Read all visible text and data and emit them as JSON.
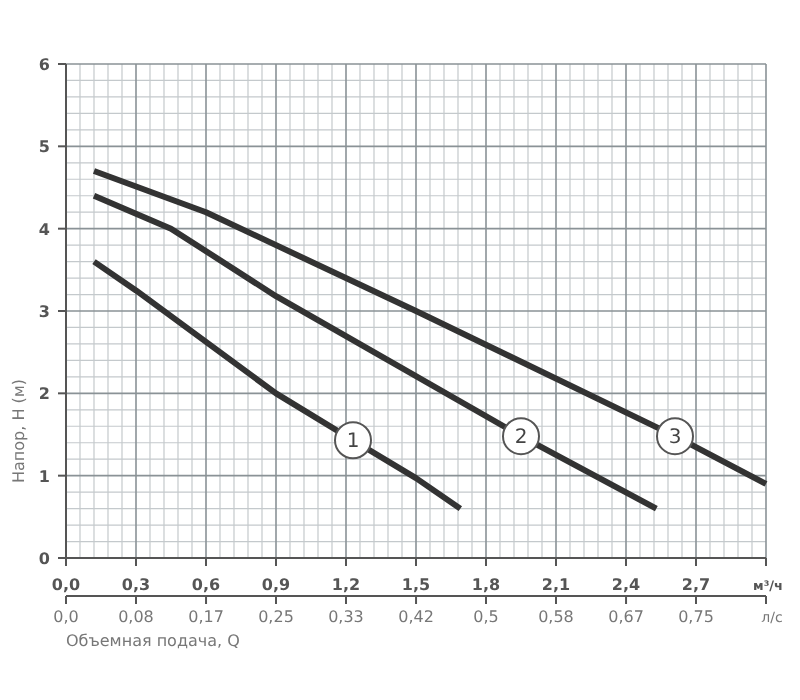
{
  "chart_data": {
    "type": "line",
    "ylabel": "Напор, H (м)",
    "xlabel": "м³/ч",
    "x2label": "л/с",
    "annotations": [
      "Объемная подача, Q"
    ],
    "xlim": [
      0,
      3.0
    ],
    "xticks": [
      {
        "value": 0,
        "label": "0,0"
      },
      {
        "value": 0.3,
        "label": "0,3"
      },
      {
        "value": 0.6,
        "label": "0,6"
      },
      {
        "value": 0.9,
        "label": "0,9"
      },
      {
        "value": 1.2,
        "label": "1,2"
      },
      {
        "value": 1.5,
        "label": "1,5"
      },
      {
        "value": 1.8,
        "label": "1,8"
      },
      {
        "value": 2.1,
        "label": "2,1"
      },
      {
        "value": 2.4,
        "label": "2,4"
      },
      {
        "value": 2.7,
        "label": "2,7"
      },
      {
        "value": 3.0,
        "label": null
      }
    ],
    "x2lim": [
      0,
      0.8333
    ],
    "x2ticks": [
      {
        "value": 0,
        "label": "0,0"
      },
      {
        "value": 0.0833,
        "label": "0,08"
      },
      {
        "value": 0.1667,
        "label": "0,17"
      },
      {
        "value": 0.25,
        "label": "0,25"
      },
      {
        "value": 0.3333,
        "label": "0,33"
      },
      {
        "value": 0.4167,
        "label": "0,42"
      },
      {
        "value": 0.5,
        "label": "0,5"
      },
      {
        "value": 0.5833,
        "label": "0,58"
      },
      {
        "value": 0.6667,
        "label": "0,67"
      },
      {
        "value": 0.75,
        "label": "0,75"
      },
      {
        "value": 0.8333,
        "label": null
      }
    ],
    "ylim": [
      0,
      6
    ],
    "yticks": [
      0,
      1,
      2,
      3,
      4,
      5,
      6
    ],
    "grid": true,
    "marker": "none",
    "line_style": "solid",
    "series": [
      {
        "name": "1",
        "color": "#333333",
        "x": [
          0.12,
          0.3,
          0.9,
          1.23,
          1.5,
          1.69
        ],
        "values": [
          3.6,
          3.25,
          2.0,
          1.43,
          0.97,
          0.6
        ]
      },
      {
        "name": "2",
        "color": "#333333",
        "x": [
          0.12,
          0.45,
          0.9,
          1.95,
          2.53
        ],
        "values": [
          4.4,
          4.0,
          3.18,
          1.48,
          0.6
        ]
      },
      {
        "name": "3",
        "color": "#333333",
        "x": [
          0.12,
          0.6,
          1.5,
          2.61,
          3.0
        ],
        "values": [
          4.7,
          4.2,
          3.0,
          1.48,
          0.9
        ]
      }
    ]
  }
}
